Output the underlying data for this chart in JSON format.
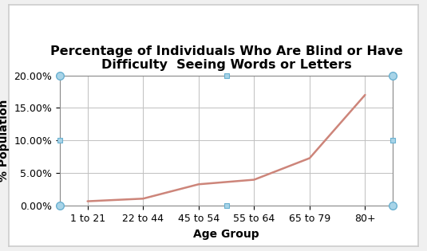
{
  "title": "Percentage of Individuals Who Are Blind or Have\nDifficulty  Seeing Words or Letters",
  "xlabel": "Age Group",
  "ylabel": "% Population",
  "categories": [
    "1 to 21",
    "22 to 44",
    "45 to 54",
    "55 to 64",
    "65 to 79",
    "80+"
  ],
  "values": [
    0.007,
    0.011,
    0.033,
    0.04,
    0.073,
    0.17
  ],
  "line_color": "#cd857a",
  "ylim": [
    0.0,
    0.2
  ],
  "yticks": [
    0.0,
    0.05,
    0.1,
    0.15,
    0.2
  ],
  "ytick_labels": [
    "0.00%",
    "5.00%",
    "10.00%",
    "15.00%",
    "20.00%"
  ],
  "title_fontsize": 11.5,
  "axis_label_fontsize": 10,
  "tick_fontsize": 9,
  "plot_bg": "#ffffff",
  "fig_bg": "#f0f0f0",
  "frame_bg": "#ffffff",
  "grid_color": "#c0c0c0",
  "border_color": "#999999",
  "marker_fill": "#a8d4e8",
  "marker_edge": "#6ab0d0",
  "line_width": 1.8,
  "marker_size_circle": 7,
  "marker_size_square": 5
}
